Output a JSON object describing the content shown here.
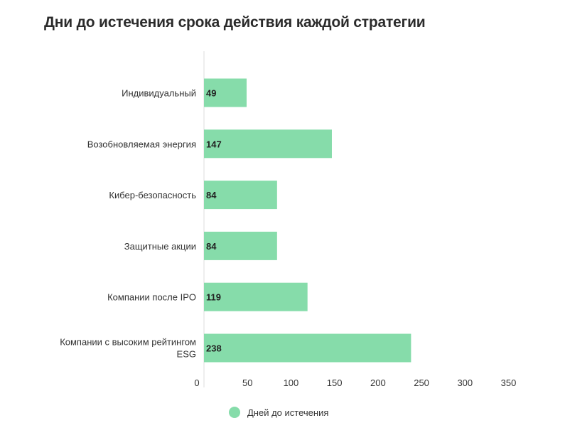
{
  "chart_data": {
    "type": "bar",
    "orientation": "horizontal",
    "title": "Дни до истечения срока действия каждой стратегии",
    "categories": [
      "Индивидуальный",
      "Возобновляемая энергия",
      "Кибер-безопасность",
      "Защитные акции",
      "Компании после IPO",
      "Компании с высоким рейтингом ESG"
    ],
    "series": [
      {
        "name": "Дней до истечения",
        "values": [
          49,
          147,
          84,
          84,
          119,
          238
        ]
      }
    ],
    "xlim": [
      0,
      350
    ],
    "xticks": [
      0,
      50,
      100,
      150,
      200,
      250,
      300,
      350
    ],
    "xlabel": "",
    "ylabel": "",
    "grid": false,
    "legend_position": "bottom",
    "colors": {
      "bar": "#86dcaa",
      "axis": "#dddddd"
    }
  }
}
